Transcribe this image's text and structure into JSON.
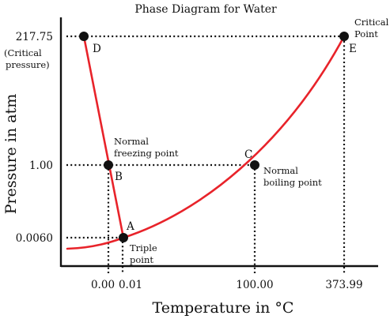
{
  "title": "Phase Diagram for Water",
  "axes": {
    "x_label": "Temperature in °C",
    "y_label": "Pressure in atm",
    "x_ticks": [
      "0.00",
      "0.01",
      "100.00",
      "373.99"
    ],
    "y_ticks": [
      "217.75",
      "1.00",
      "0.0060"
    ],
    "y_tick_note_line1": "(Critical",
    "y_tick_note_line2": "pressure)"
  },
  "points": {
    "A": {
      "letter": "A",
      "note_line1": "Triple",
      "note_line2": "point",
      "temperature": 0.01,
      "pressure": 0.006
    },
    "B": {
      "letter": "B",
      "note_line1": "Normal",
      "note_line2": "freezing point",
      "temperature": 0.0,
      "pressure": 1.0
    },
    "C": {
      "letter": "C",
      "note_line1": "Normal",
      "note_line2": "boiling point",
      "temperature": 100.0,
      "pressure": 1.0
    },
    "D": {
      "letter": "D",
      "pressure": 217.75
    },
    "E": {
      "letter": "E",
      "note_line1": "Critical",
      "note_line2": "Point",
      "temperature": 373.99,
      "pressure": 217.75
    }
  },
  "colors": {
    "phase_boundary": "#e8232a",
    "ink": "#111111",
    "background": "#ffffff"
  }
}
